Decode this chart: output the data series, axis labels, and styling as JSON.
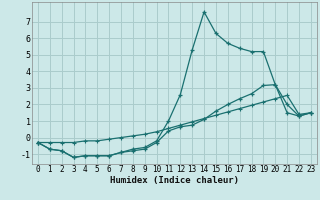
{
  "xlabel": "Humidex (Indice chaleur)",
  "background_color": "#cce8e8",
  "grid_color": "#aacccc",
  "line_color": "#1a7070",
  "xlim": [
    -0.5,
    23.5
  ],
  "ylim": [
    -1.6,
    8.2
  ],
  "yticks": [
    -1,
    0,
    1,
    2,
    3,
    4,
    5,
    6,
    7
  ],
  "xticks": [
    0,
    1,
    2,
    3,
    4,
    5,
    6,
    7,
    8,
    9,
    10,
    11,
    12,
    13,
    14,
    15,
    16,
    17,
    18,
    19,
    20,
    21,
    22,
    23
  ],
  "series1_x": [
    0,
    1,
    2,
    3,
    4,
    5,
    6,
    7,
    8,
    9,
    10,
    11,
    12,
    13,
    14,
    15,
    16,
    17,
    18,
    19,
    20,
    21,
    22,
    23
  ],
  "series1_y": [
    -0.3,
    -0.7,
    -0.8,
    -1.2,
    -1.1,
    -1.1,
    -1.1,
    -0.9,
    -0.7,
    -0.6,
    -0.2,
    1.0,
    2.6,
    5.3,
    7.6,
    6.3,
    5.7,
    5.4,
    5.2,
    5.2,
    3.2,
    2.0,
    1.3,
    1.5
  ],
  "series2_x": [
    0,
    1,
    2,
    3,
    4,
    5,
    6,
    7,
    8,
    9,
    10,
    11,
    12,
    13,
    14,
    15,
    16,
    17,
    18,
    19,
    20,
    21,
    22,
    23
  ],
  "series2_y": [
    -0.3,
    -0.7,
    -0.8,
    -1.2,
    -1.1,
    -1.1,
    -1.1,
    -0.9,
    -0.8,
    -0.7,
    -0.3,
    0.4,
    0.65,
    0.75,
    1.1,
    1.6,
    2.0,
    2.35,
    2.65,
    3.15,
    3.2,
    1.5,
    1.3,
    1.5
  ],
  "series3_x": [
    0,
    1,
    2,
    3,
    4,
    5,
    6,
    7,
    8,
    9,
    10,
    11,
    12,
    13,
    14,
    15,
    16,
    17,
    18,
    19,
    20,
    21,
    22,
    23
  ],
  "series3_y": [
    -0.3,
    -0.3,
    -0.3,
    -0.3,
    -0.2,
    -0.2,
    -0.1,
    0.0,
    0.1,
    0.2,
    0.35,
    0.55,
    0.75,
    0.95,
    1.15,
    1.35,
    1.55,
    1.75,
    1.95,
    2.15,
    2.35,
    2.55,
    1.4,
    1.5
  ]
}
